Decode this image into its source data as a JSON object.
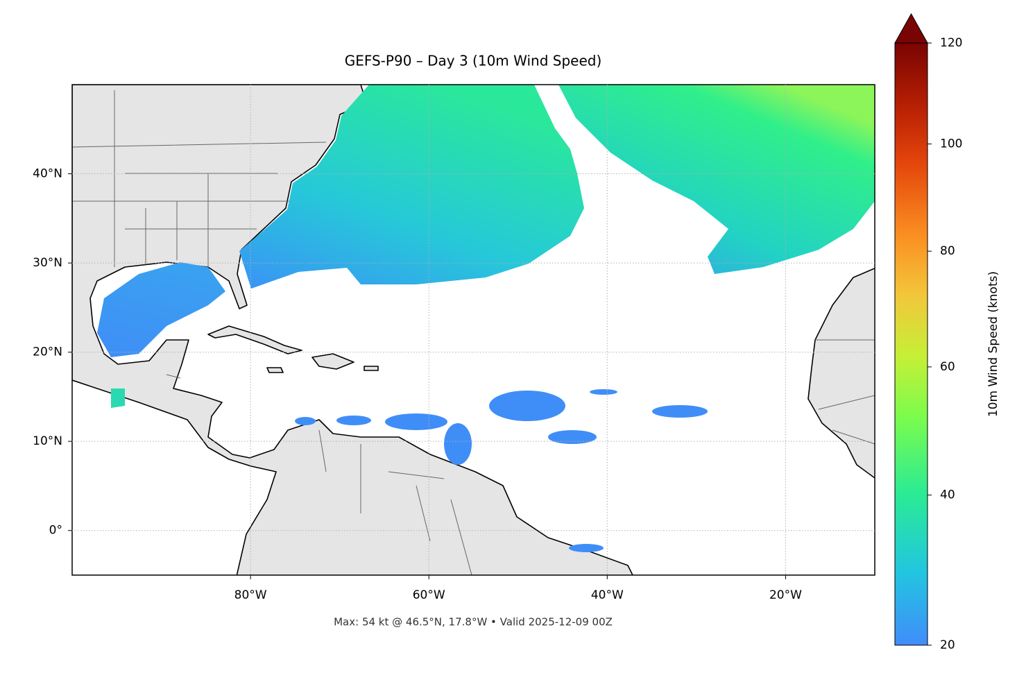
{
  "chart_data": {
    "type": "map",
    "title": "GEFS-P90 – Day 3 (10m Wind Speed)",
    "footnote": "Max: 54 kt @ 46.5°N, 17.8°W • Valid 2025-12-09 00Z",
    "xlim": [
      -100,
      -10
    ],
    "ylim": [
      -5,
      50
    ],
    "xticks": [
      {
        "value": -80,
        "label": "80°W"
      },
      {
        "value": -60,
        "label": "60°W"
      },
      {
        "value": -40,
        "label": "40°W"
      },
      {
        "value": -20,
        "label": "20°W"
      }
    ],
    "yticks": [
      {
        "value": 0,
        "label": "0°"
      },
      {
        "value": 10,
        "label": "10°N"
      },
      {
        "value": 20,
        "label": "20°N"
      },
      {
        "value": 30,
        "label": "30°N"
      },
      {
        "value": 40,
        "label": "40°N"
      }
    ],
    "grid": true,
    "colorbar": {
      "label": "10m Wind Speed (knots)",
      "lim": [
        20,
        120
      ],
      "ticks": [
        20,
        40,
        60,
        80,
        100,
        120
      ],
      "gamma": 0.7,
      "extend": "max"
    }
  }
}
